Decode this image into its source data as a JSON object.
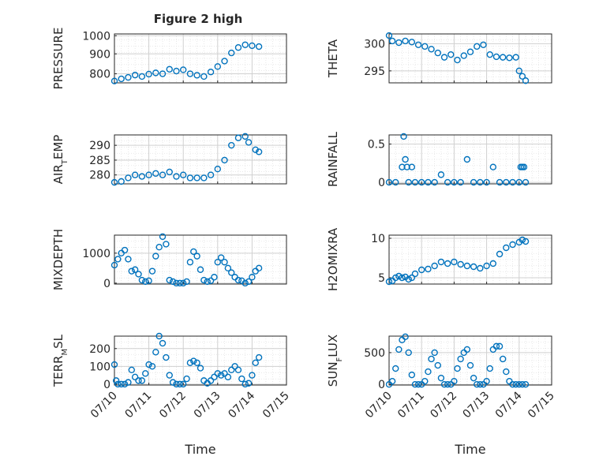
{
  "figure_title": "Figure 2 high",
  "colors": {
    "marker": "#0072BD",
    "axes": "#262626",
    "grid": "#d0d0d0",
    "minor_grid": "#e2e2e2",
    "background": "#ffffff"
  },
  "chart_data": [
    {
      "type": "scatter",
      "title": "Figure 2 high",
      "ylabel": "PRESSURE",
      "xlabel": "",
      "yticks": [
        "800",
        "900",
        "1000"
      ],
      "ylim": [
        740,
        1010
      ],
      "xlim": [
        "07/10",
        "07/15"
      ],
      "xticks": [],
      "grid": true,
      "marker": "circle-open",
      "series": [
        {
          "x": [
            0.0,
            0.2,
            0.4,
            0.6,
            0.8,
            1.0,
            1.2,
            1.4,
            1.6,
            1.8,
            2.0,
            2.2,
            2.4,
            2.6,
            2.8,
            3.0,
            3.2,
            3.4,
            3.6,
            3.8,
            4.0,
            4.2
          ],
          "y": [
            750,
            762,
            770,
            783,
            775,
            788,
            795,
            790,
            815,
            805,
            812,
            790,
            782,
            775,
            800,
            830,
            860,
            905,
            935,
            950,
            945,
            940
          ]
        }
      ]
    },
    {
      "type": "scatter",
      "title": "",
      "ylabel": "THETA",
      "xlabel": "",
      "yticks": [
        "295",
        "300"
      ],
      "ylim": [
        292.8,
        301.8
      ],
      "xlim": [
        "07/10",
        "07/15"
      ],
      "xticks": [],
      "grid": true,
      "marker": "circle-open",
      "series": [
        {
          "x": [
            0.0,
            0.1,
            0.3,
            0.5,
            0.7,
            0.9,
            1.1,
            1.3,
            1.5,
            1.7,
            1.9,
            2.1,
            2.3,
            2.5,
            2.7,
            2.9,
            3.1,
            3.3,
            3.5,
            3.7,
            3.9,
            4.0,
            4.1,
            4.2
          ],
          "y": [
            301.5,
            300.5,
            300.2,
            300.5,
            300.3,
            299.8,
            299.5,
            299,
            298.3,
            297.5,
            298,
            297,
            297.8,
            298.5,
            299.5,
            299.8,
            298,
            297.6,
            297.5,
            297.4,
            297.5,
            295,
            294,
            293.2
          ]
        }
      ]
    },
    {
      "type": "scatter",
      "title": "",
      "ylabel": "AIR_TEMP",
      "xlabel": "",
      "yticks": [
        "280",
        "285",
        "290"
      ],
      "ylim": [
        277,
        293.5
      ],
      "xlim": [
        "07/10",
        "07/15"
      ],
      "xticks": [],
      "grid": true,
      "marker": "circle-open",
      "series": [
        {
          "x": [
            0.0,
            0.2,
            0.4,
            0.6,
            0.8,
            1.0,
            1.2,
            1.4,
            1.6,
            1.8,
            2.0,
            2.2,
            2.4,
            2.6,
            2.8,
            3.0,
            3.2,
            3.4,
            3.6,
            3.8,
            3.9,
            4.1,
            4.2
          ],
          "y": [
            277.5,
            277.8,
            279,
            280,
            279.5,
            280,
            280.5,
            280,
            281,
            279.5,
            280,
            279,
            279,
            279,
            280,
            282,
            285,
            290,
            292.5,
            293,
            291,
            288.5,
            287.8
          ]
        }
      ]
    },
    {
      "type": "scatter",
      "title": "",
      "ylabel": "RAINFALL",
      "xlabel": "",
      "yticks": [
        "0",
        "0.5"
      ],
      "ylim": [
        -0.02,
        0.62
      ],
      "xlim": [
        "07/10",
        "07/15"
      ],
      "xticks": [],
      "grid": true,
      "marker": "circle-open",
      "series": [
        {
          "x": [
            0.0,
            0.2,
            0.4,
            0.45,
            0.5,
            0.55,
            0.6,
            0.7,
            0.8,
            1.0,
            1.2,
            1.4,
            1.6,
            1.8,
            2.0,
            2.2,
            2.4,
            2.6,
            2.8,
            3.0,
            3.2,
            3.4,
            3.6,
            3.8,
            4.0,
            4.05,
            4.1,
            4.15,
            4.2
          ],
          "y": [
            0,
            0,
            0.2,
            0.6,
            0.3,
            0.2,
            0,
            0.2,
            0,
            0,
            0,
            0,
            0.1,
            0,
            0,
            0,
            0.3,
            0,
            0,
            0,
            0.2,
            0,
            0,
            0,
            0,
            0.2,
            0.2,
            0.2,
            0
          ]
        }
      ]
    },
    {
      "type": "scatter",
      "title": "",
      "ylabel": "MIXDEPTH",
      "xlabel": "",
      "yticks": [
        "0",
        "1000"
      ],
      "ylim": [
        -30,
        1600
      ],
      "xlim": [
        "07/10",
        "07/15"
      ],
      "xticks": [],
      "grid": true,
      "marker": "circle-open",
      "series": [
        {
          "x": [
            0.0,
            0.1,
            0.2,
            0.3,
            0.4,
            0.5,
            0.6,
            0.7,
            0.8,
            0.9,
            1.0,
            1.1,
            1.2,
            1.3,
            1.4,
            1.5,
            1.6,
            1.7,
            1.8,
            1.9,
            2.0,
            2.1,
            2.2,
            2.3,
            2.4,
            2.5,
            2.6,
            2.7,
            2.8,
            2.9,
            3.0,
            3.1,
            3.2,
            3.3,
            3.4,
            3.5,
            3.6,
            3.7,
            3.8,
            3.9,
            4.0,
            4.1,
            4.2
          ],
          "y": [
            600,
            800,
            1000,
            1100,
            800,
            400,
            450,
            300,
            100,
            50,
            80,
            400,
            900,
            1200,
            1550,
            1300,
            100,
            50,
            0,
            0,
            0,
            50,
            700,
            1050,
            900,
            450,
            100,
            50,
            80,
            200,
            700,
            850,
            700,
            500,
            350,
            200,
            100,
            80,
            0,
            50,
            200,
            400,
            500
          ]
        }
      ]
    },
    {
      "type": "scatter",
      "title": "",
      "ylabel": "H2OMIXRA",
      "xlabel": "",
      "yticks": [
        "5",
        "10"
      ],
      "ylim": [
        4.2,
        10.4
      ],
      "xlim": [
        "07/10",
        "07/15"
      ],
      "xticks": [],
      "grid": true,
      "marker": "circle-open",
      "series": [
        {
          "x": [
            0.0,
            0.1,
            0.2,
            0.3,
            0.4,
            0.5,
            0.6,
            0.7,
            0.8,
            1.0,
            1.2,
            1.4,
            1.6,
            1.8,
            2.0,
            2.2,
            2.4,
            2.6,
            2.8,
            3.0,
            3.2,
            3.4,
            3.6,
            3.8,
            4.0,
            4.1,
            4.2
          ],
          "y": [
            4.5,
            4.6,
            5,
            5.2,
            5,
            5.1,
            4.8,
            5,
            5.5,
            6,
            6.1,
            6.5,
            7,
            6.8,
            7,
            6.7,
            6.5,
            6.4,
            6.2,
            6.5,
            6.8,
            8,
            8.8,
            9.2,
            9.5,
            9.8,
            9.6
          ]
        }
      ]
    },
    {
      "type": "scatter",
      "title": "",
      "ylabel": "TERR_MSL",
      "xlabel": "Time",
      "yticks": [
        "0",
        "100",
        "200"
      ],
      "ylim": [
        -5,
        270
      ],
      "xlim": [
        "07/10",
        "07/15"
      ],
      "xticks": [
        "07/10",
        "07/11",
        "07/12",
        "07/13",
        "07/14",
        "07/15"
      ],
      "grid": true,
      "marker": "circle-open",
      "series": [
        {
          "x": [
            0.0,
            0.05,
            0.1,
            0.2,
            0.3,
            0.4,
            0.5,
            0.6,
            0.7,
            0.8,
            0.9,
            1.0,
            1.1,
            1.2,
            1.3,
            1.4,
            1.5,
            1.6,
            1.7,
            1.8,
            1.9,
            2.0,
            2.1,
            2.2,
            2.3,
            2.4,
            2.5,
            2.6,
            2.7,
            2.8,
            2.9,
            3.0,
            3.1,
            3.2,
            3.3,
            3.4,
            3.5,
            3.6,
            3.7,
            3.8,
            3.9,
            4.0,
            4.1,
            4.2
          ],
          "y": [
            110,
            20,
            0,
            0,
            0,
            10,
            80,
            40,
            20,
            20,
            60,
            110,
            100,
            180,
            270,
            230,
            150,
            50,
            10,
            0,
            0,
            0,
            30,
            120,
            130,
            120,
            90,
            20,
            5,
            20,
            40,
            60,
            50,
            60,
            40,
            80,
            100,
            80,
            30,
            0,
            5,
            50,
            120,
            150
          ]
        }
      ]
    },
    {
      "type": "scatter",
      "title": "",
      "ylabel": "SUN_FLUX",
      "xlabel": "Time",
      "yticks": [
        "0",
        "500"
      ],
      "ylim": [
        -10,
        760
      ],
      "xlim": [
        "07/10",
        "07/15"
      ],
      "xticks": [
        "07/10",
        "07/11",
        "07/12",
        "07/13",
        "07/14",
        "07/15"
      ],
      "grid": true,
      "marker": "circle-open",
      "series": [
        {
          "x": [
            0.0,
            0.1,
            0.2,
            0.3,
            0.4,
            0.5,
            0.6,
            0.7,
            0.8,
            0.9,
            1.0,
            1.1,
            1.2,
            1.3,
            1.4,
            1.5,
            1.6,
            1.7,
            1.8,
            1.9,
            2.0,
            2.1,
            2.2,
            2.3,
            2.4,
            2.5,
            2.6,
            2.7,
            2.8,
            2.9,
            3.0,
            3.1,
            3.2,
            3.3,
            3.4,
            3.5,
            3.6,
            3.7,
            3.8,
            3.9,
            4.0,
            4.1,
            4.2
          ],
          "y": [
            0,
            50,
            250,
            550,
            700,
            750,
            500,
            150,
            0,
            0,
            0,
            50,
            200,
            400,
            500,
            300,
            100,
            0,
            0,
            0,
            50,
            250,
            400,
            500,
            550,
            300,
            100,
            0,
            0,
            0,
            50,
            250,
            550,
            600,
            600,
            400,
            200,
            50,
            0,
            0,
            0,
            0,
            0
          ]
        }
      ]
    }
  ]
}
